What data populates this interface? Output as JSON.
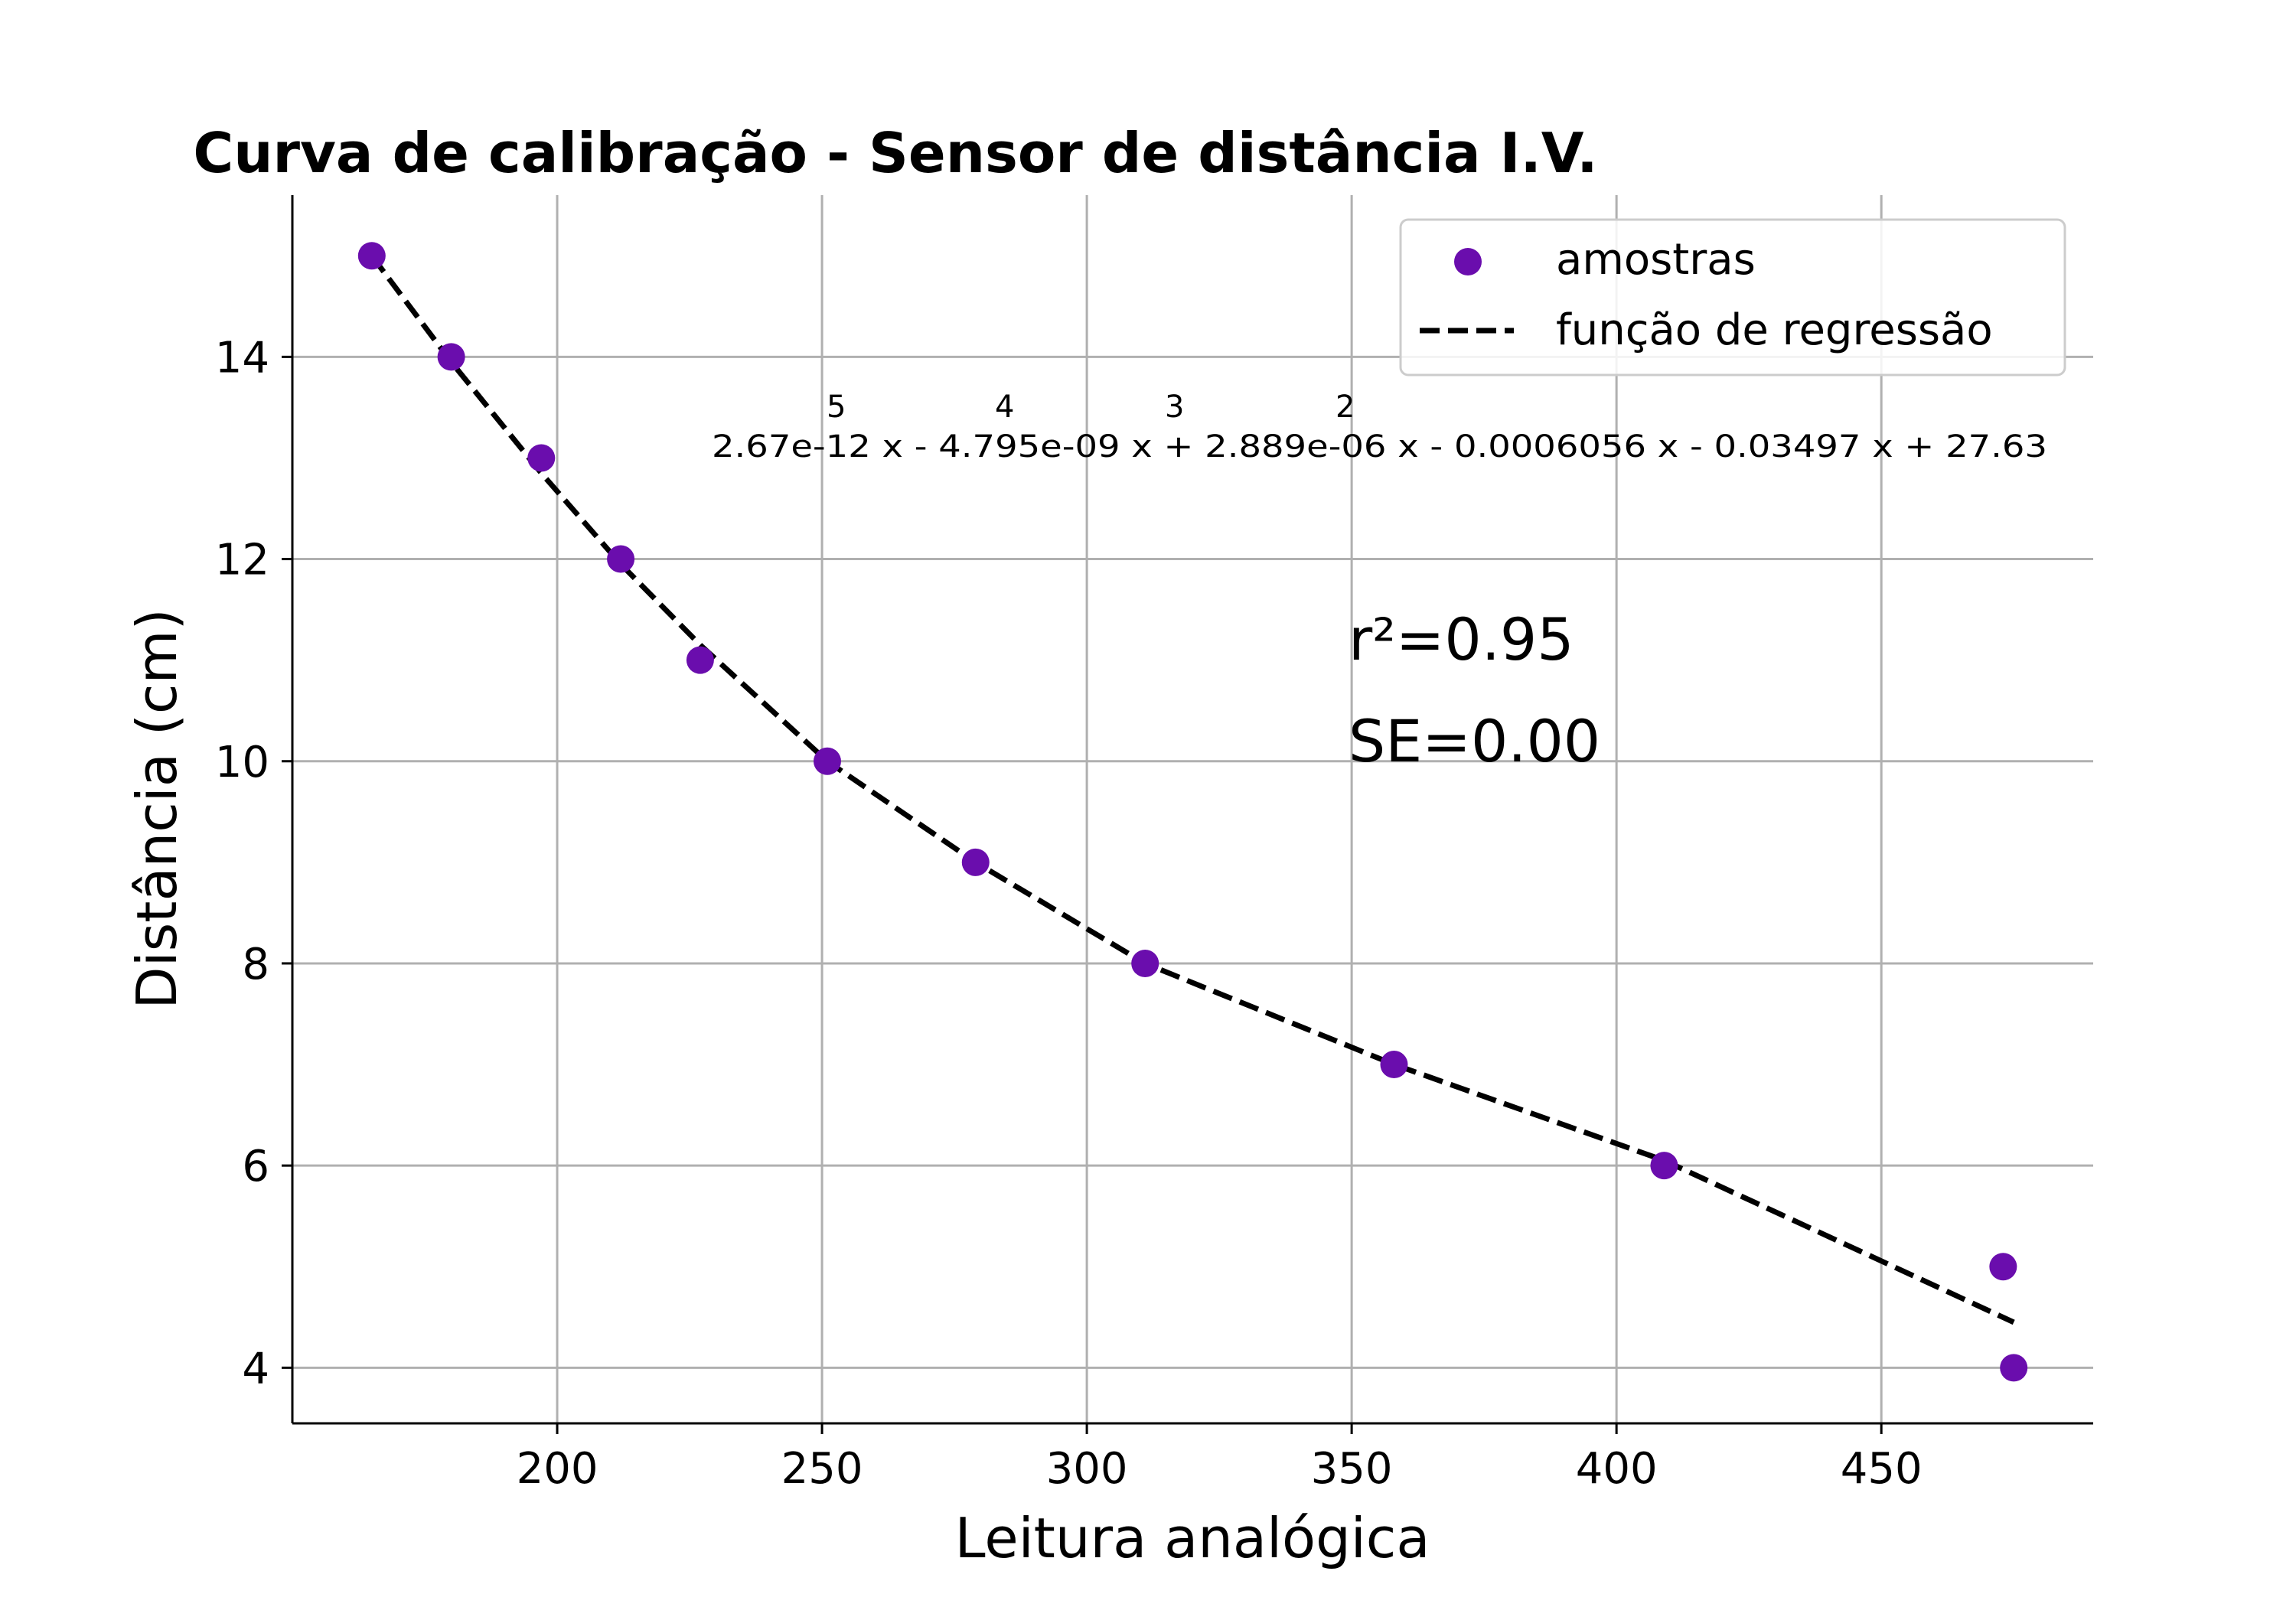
{
  "chart_data": {
    "type": "scatter",
    "title": "Curva de calibração - Sensor de distância I.V.",
    "xlabel": "Leitura analógica",
    "ylabel": "Distância (cm)",
    "xlim": [
      150,
      490
    ],
    "ylim": [
      3.45,
      15.6
    ],
    "xticks": [
      200,
      250,
      300,
      350,
      400,
      450
    ],
    "yticks": [
      4,
      6,
      8,
      10,
      12,
      14
    ],
    "grid": true,
    "legend_position": "top-right",
    "colors": {
      "samples": "#6a0dad",
      "regression": "#000000",
      "grid": "#b0b0b0"
    },
    "series": [
      {
        "name": "amostras",
        "kind": "scatter",
        "x": [
          165,
          180,
          197,
          212,
          227,
          251,
          279,
          311,
          358,
          409,
          473,
          475
        ],
        "y": [
          15,
          14,
          13,
          12,
          11,
          10,
          9,
          8,
          7,
          6,
          5,
          4
        ]
      },
      {
        "name": "função de regressão",
        "kind": "line",
        "style": "dashed",
        "x": [
          165,
          180,
          197,
          212,
          227,
          251,
          279,
          311,
          358,
          409,
          475
        ],
        "y": [
          15.0,
          13.95,
          12.85,
          11.95,
          11.15,
          10.0,
          9.0,
          8.0,
          7.0,
          6.05,
          4.45
        ]
      }
    ],
    "annotations": {
      "equation_exponents": [
        "5",
        "4",
        "3",
        "2"
      ],
      "equation": "2.67e-12 x - 4.795e-09 x + 2.889e-06 x - 0.0006056 x - 0.03497 x + 27.63",
      "r2": "r²=0.95",
      "se": "SE=0.00"
    }
  }
}
